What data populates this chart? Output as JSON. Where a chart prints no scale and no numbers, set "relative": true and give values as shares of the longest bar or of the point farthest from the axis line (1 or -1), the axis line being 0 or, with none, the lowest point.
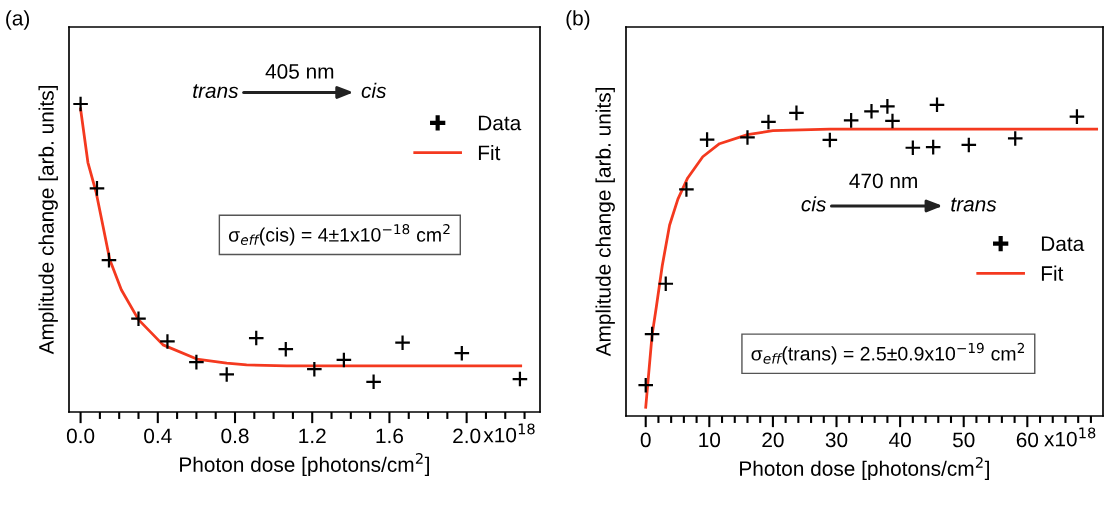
{
  "chart_data": [
    {
      "type": "scatter",
      "title": "(a)",
      "xlabel": "Photon dose [photons/cm$^{2}$]",
      "ylabel": "Amplitude change [arb. units]",
      "relative": true,
      "legend": "top right",
      "xlim": [
        -0.06,
        2.38
      ],
      "xticks": [
        {
          "value": 0.0,
          "label": "0.0"
        },
        0.4,
        0.8,
        1.2,
        1.6,
        {
          "value": 2.0,
          "label": "2.0"
        }
      ],
      "annotations": [
        "trans",
        "405 nm",
        "cis",
        "σ$_{eff}$(cis) = 4±1x10$^{−18}$ cm$^{2}$",
        "x10$^{18}$"
      ],
      "series": [
        {
          "name": "Data",
          "marker": "cross",
          "color": "#000000",
          "x": [
            0.0,
            0.085,
            0.147,
            0.3,
            0.45,
            0.6,
            0.757,
            0.91,
            1.063,
            1.211,
            1.364,
            1.518,
            1.668,
            1.975,
            2.276
          ],
          "values": [
            1.0,
            0.726,
            0.493,
            0.303,
            0.229,
            0.162,
            0.122,
            0.24,
            0.204,
            0.139,
            0.169,
            0.098,
            0.225,
            0.191,
            0.107
          ]
        },
        {
          "name": "Fit",
          "type": "line",
          "color": "#f4391f",
          "x": [
            0.0,
            0.038,
            0.081,
            0.116,
            0.151,
            0.211,
            0.3,
            0.427,
            0.602,
            0.757,
            0.86,
            1.068,
            2.28
          ],
          "values": [
            0.984,
            0.81,
            0.712,
            0.604,
            0.495,
            0.397,
            0.3,
            0.218,
            0.172,
            0.159,
            0.153,
            0.15,
            0.15
          ]
        }
      ]
    },
    {
      "type": "scatter",
      "title": "(b)",
      "xlabel": "Photon dose [photons/cm$^{2}$]",
      "ylabel": "Amplitude change [arb. units]",
      "relative": true,
      "legend": "right",
      "xlim": [
        -3.1,
        71.9
      ],
      "xticks": [
        0,
        10,
        20,
        30,
        40,
        50,
        60
      ],
      "annotations": [
        "cis",
        "470 nm",
        "trans",
        "σ$_{eff}$(trans) = 2.5±0.9x10$^{−19}$ cm$^{2}$",
        "x10$^{18}$"
      ],
      "series": [
        {
          "name": "Data",
          "marker": "cross",
          "color": "#000000",
          "x": [
            0.0,
            1.0,
            3.15,
            6.4,
            9.65,
            16.0,
            19.3,
            23.7,
            28.95,
            32.3,
            35.5,
            38.0,
            38.8,
            42.0,
            45.2,
            45.8,
            50.8,
            58.1,
            67.8
          ],
          "values": [
            0.099,
            0.263,
            0.425,
            0.728,
            0.888,
            0.895,
            0.945,
            0.974,
            0.887,
            0.95,
            0.979,
            0.995,
            0.948,
            0.862,
            0.864,
            1.0,
            0.871,
            0.892,
            0.962
          ]
        },
        {
          "name": "Fit",
          "type": "line",
          "color": "#f4391f",
          "x": [
            0.0,
            1.0,
            1.68,
            2.6,
            3.75,
            5.06,
            6.6,
            8.97,
            11.6,
            16.0,
            20.0,
            28.95,
            70.9
          ],
          "values": [
            0.028,
            0.26,
            0.352,
            0.483,
            0.613,
            0.697,
            0.765,
            0.833,
            0.875,
            0.904,
            0.917,
            0.922,
            0.922
          ]
        }
      ]
    }
  ]
}
